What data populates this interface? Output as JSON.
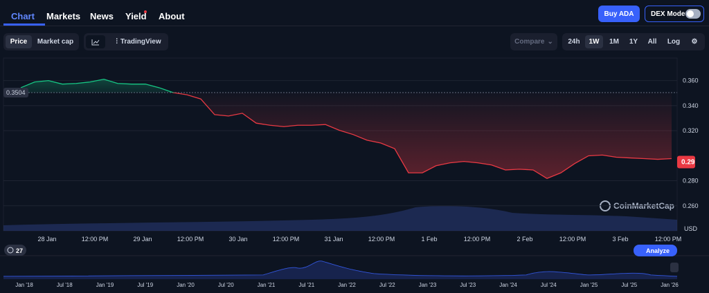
{
  "nav": {
    "tabs": [
      "Chart",
      "Markets",
      "News",
      "Yield",
      "About"
    ],
    "buy": "Buy ADA",
    "dex": "DEX Mode"
  },
  "toolbar": {
    "price": "Price",
    "market_cap": "Market cap",
    "tradingview": "TradingView",
    "compare": "Compare",
    "ranges": [
      "24h",
      "1W",
      "1M",
      "1Y",
      "All"
    ],
    "log": "Log"
  },
  "chart_data": {
    "type": "line",
    "values": [
      0.3543,
      0.3589,
      0.36,
      0.3572,
      0.3577,
      0.3589,
      0.3611,
      0.3577,
      0.3572,
      0.3572,
      0.3543,
      0.3504,
      0.3487,
      0.3453,
      0.3328,
      0.3317,
      0.3339,
      0.326,
      0.3243,
      0.3232,
      0.3243,
      0.3243,
      0.3249,
      0.3203,
      0.3169,
      0.3124,
      0.3101,
      0.3056,
      0.2863,
      0.2863,
      0.292,
      0.2943,
      0.2954,
      0.2943,
      0.2926,
      0.2886,
      0.2892,
      0.2886,
      0.2818,
      0.2863,
      0.2937,
      0.2999,
      0.3005,
      0.2988,
      0.2982,
      0.2977,
      0.2971,
      0.2977
    ],
    "color_up": "#16c784",
    "color_down": "#ea3943",
    "reference": {
      "value": 0.3504,
      "label": "0.3504"
    },
    "current": {
      "value": 0.2949,
      "label": "0.29"
    },
    "ylim": [
      0.24,
      0.378
    ],
    "yticks": [
      {
        "value": 0.26,
        "label": "0.260"
      },
      {
        "value": 0.28,
        "label": "0.280"
      },
      {
        "value": 0.32,
        "label": "0.320"
      },
      {
        "value": 0.34,
        "label": "0.340"
      },
      {
        "value": 0.36,
        "label": "0.360"
      }
    ],
    "y_unit": "USD",
    "grid": true,
    "xticks": [
      "28 Jan",
      "12:00 PM",
      "29 Jan",
      "12:00 PM",
      "30 Jan",
      "12:00 PM",
      "31 Jan",
      "12:00 PM",
      "1 Feb",
      "12:00 PM",
      "2 Feb",
      "12:00 PM",
      "3 Feb",
      "12:00 PM"
    ],
    "watermark": "CoinMarketCap"
  },
  "navigator": {
    "labels": [
      "Jan '18",
      "Jul '18",
      "Jan '19",
      "Jul '19",
      "Jan '20",
      "Jul '20",
      "Jan '21",
      "Jul '21",
      "Jan '22",
      "Jul '22",
      "Jan '23",
      "Jul '23",
      "Jan '24",
      "Jul '24",
      "Jan '25",
      "Jul '25",
      "Jan '26"
    ],
    "badge": "27",
    "analyze": "Analyze"
  }
}
